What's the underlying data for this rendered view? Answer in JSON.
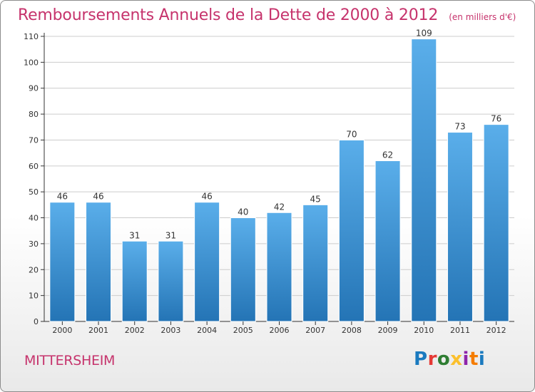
{
  "chart_data": {
    "type": "bar",
    "title": "Remboursements Annuels de la Dette de 2000 à 2012",
    "subtitle": "(en milliers d'€)",
    "categories": [
      "2000",
      "2001",
      "2002",
      "2003",
      "2004",
      "2005",
      "2006",
      "2007",
      "2008",
      "2009",
      "2010",
      "2011",
      "2012"
    ],
    "values": [
      46,
      46,
      31,
      31,
      46,
      40,
      42,
      45,
      70,
      62,
      109,
      73,
      76
    ],
    "ylim": [
      0,
      110
    ],
    "yticks": [
      0,
      10,
      20,
      30,
      40,
      50,
      60,
      70,
      80,
      90,
      100,
      110
    ],
    "grid": true,
    "bar_color": "#3d8fd4",
    "grid_color": "#cccccc"
  },
  "footer": {
    "city": "MITTERSHEIM",
    "brand": "Proxiti",
    "brand_colors": [
      "#1a7abf",
      "#e53935",
      "#2e7d32",
      "#fbc02d",
      "#8e24aa",
      "#f57c00",
      "#1a7abf"
    ]
  },
  "colors": {
    "title": "#c6336c",
    "frame_border": "#8c8c8c"
  }
}
